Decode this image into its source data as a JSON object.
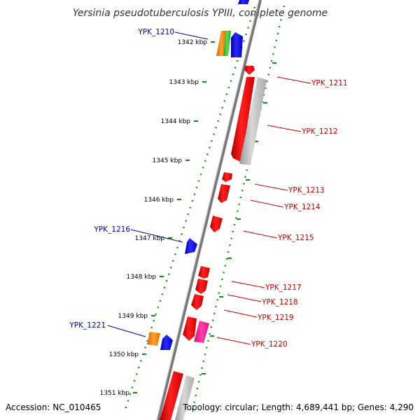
{
  "title": "Yersinia pseudotuberculosis YPIII, complete genome",
  "footer": {
    "accession": "Accession: NC_010465",
    "topology": "Topology: circular; Length: 4,689,441 bp; Genes: 4,290"
  },
  "scale_labels": [
    "1342 kbp",
    "1343 kbp",
    "1344 kbp",
    "1345 kbp",
    "1346 kbp",
    "1347 kbp",
    "1348 kbp",
    "1349 kbp",
    "1350 kbp",
    "1351 kbp"
  ],
  "gene_labels": {
    "reverse": [
      "YPK_1210",
      "YPK_1216",
      "YPK_1221"
    ],
    "forward": [
      "YPK_1211",
      "YPK_1212",
      "YPK_1213",
      "YPK_1214",
      "YPK_1215",
      "YPK_1217",
      "YPK_1218",
      "YPK_1219",
      "YPK_1220"
    ]
  },
  "colors": {
    "forward_gene": "#ff0000",
    "reverse_gene": "#0000ee",
    "forward_label": "#cc0000",
    "reverse_label": "#0000aa",
    "pseudo_gray": "#b4b4b4",
    "orange": "#ff8c00",
    "green": "#33cc33",
    "magenta": "#ff1493",
    "backbone": "#888888",
    "tick": "#1a8a1a"
  }
}
